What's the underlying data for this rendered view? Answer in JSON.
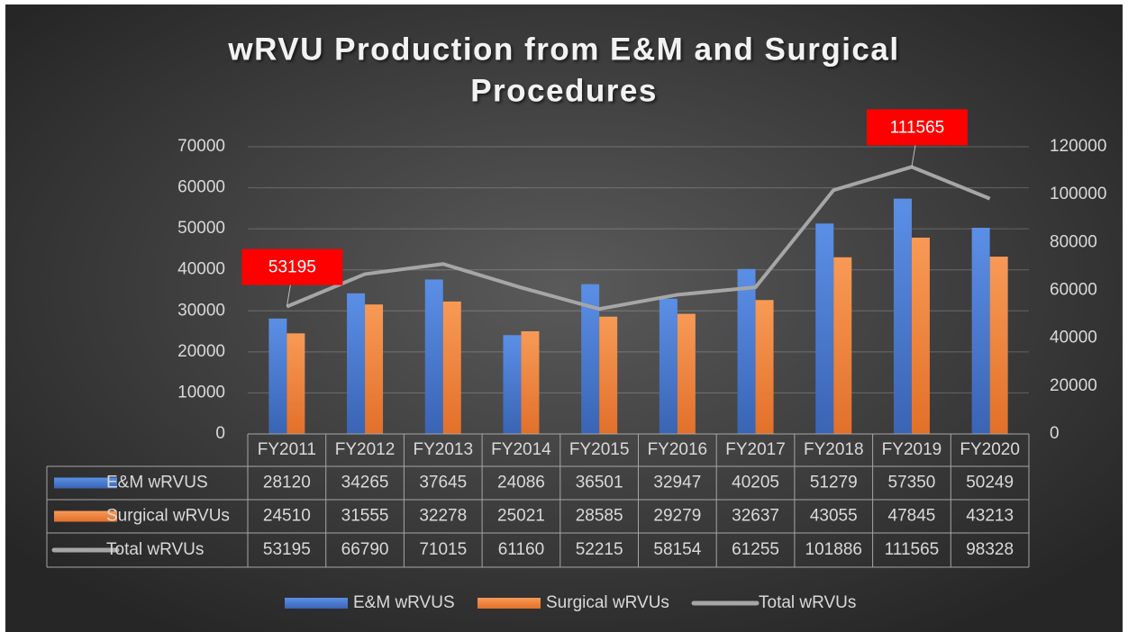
{
  "chart_data": {
    "type": "bar_line_table",
    "title": [
      "wRVU Production from E&M and Surgical",
      "Procedures"
    ],
    "categories": [
      "FY2011",
      "FY2012",
      "FY2013",
      "FY2014",
      "FY2015",
      "FY2016",
      "FY2017",
      "FY2018",
      "FY2019",
      "FY2020"
    ],
    "series": [
      {
        "name": "E&M wRVUS",
        "type": "bar",
        "color": "#4472c4",
        "values": [
          28120,
          34265,
          37645,
          24086,
          36501,
          32947,
          40205,
          51279,
          57350,
          50249
        ]
      },
      {
        "name": "Surgical wRVUs",
        "type": "bar",
        "color": "#ed7d31",
        "values": [
          24510,
          31555,
          32278,
          25021,
          28585,
          29279,
          32637,
          43055,
          47845,
          43213
        ]
      },
      {
        "name": "Total wRVUs",
        "type": "line",
        "axis": "y2",
        "color": "#a6a6a6",
        "values": [
          53195,
          66790,
          71015,
          61160,
          52215,
          58154,
          61255,
          101886,
          111565,
          98328
        ],
        "value_labels": [
          "53195",
          null,
          null,
          null,
          null,
          null,
          null,
          null,
          "111565",
          null
        ]
      }
    ],
    "ylim": [
      0,
      70000
    ],
    "yticks": [
      0,
      10000,
      20000,
      30000,
      40000,
      50000,
      60000,
      70000
    ],
    "y2lim": [
      0,
      120000
    ],
    "y2ticks": [
      0,
      20000,
      40000,
      60000,
      80000,
      100000,
      120000
    ],
    "grid": true,
    "data_table": true,
    "legend": "bottom"
  }
}
